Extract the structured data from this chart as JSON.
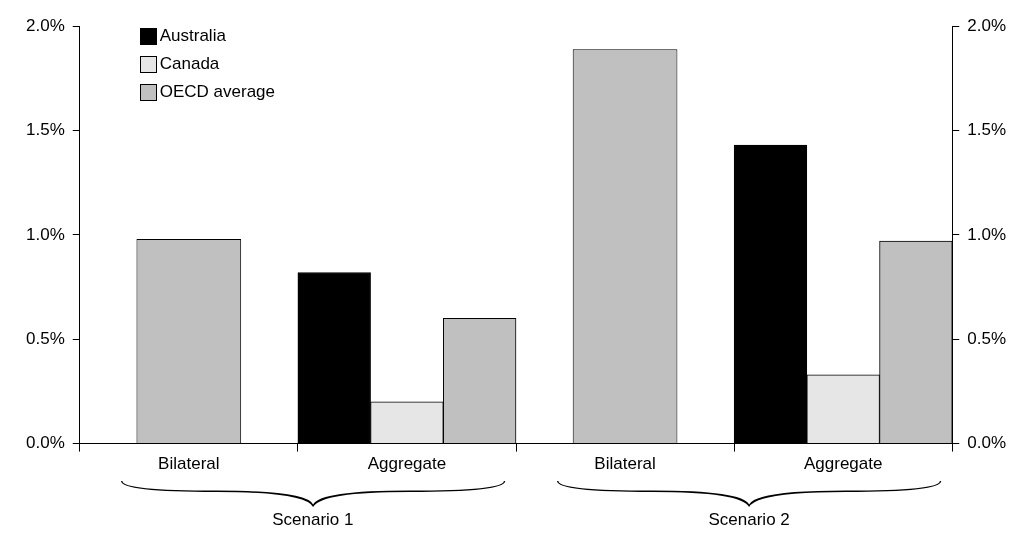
{
  "chart_data": {
    "type": "bar",
    "categories": [
      "Bilateral",
      "Aggregate",
      "Bilateral",
      "Aggregate"
    ],
    "series": [
      {
        "name": "Australia",
        "color": "#000000",
        "values": [
          null,
          0.82,
          null,
          1.43
        ]
      },
      {
        "name": "Canada",
        "color": "#e6e6e6",
        "values": [
          null,
          0.2,
          null,
          0.33
        ]
      },
      {
        "name": "OECD average",
        "color": "#c0c0c0",
        "values": [
          0.98,
          0.6,
          1.89,
          0.97
        ]
      }
    ],
    "ylim": [
      0,
      2
    ],
    "yticks": [
      {
        "value": 0,
        "label": "0.0%"
      },
      {
        "value": 0.5,
        "label": "0.5%"
      },
      {
        "value": 1,
        "label": "1.0%"
      },
      {
        "value": 1.5,
        "label": "1.5%"
      },
      {
        "value": 2,
        "label": "2.0%"
      }
    ],
    "y2lim": [
      0,
      2
    ],
    "y2ticks": [
      {
        "value": 0,
        "label": "0.0%"
      },
      {
        "value": 0.5,
        "label": "0.5%"
      },
      {
        "value": 1,
        "label": "1.0%"
      },
      {
        "value": 1.5,
        "label": "1.5%"
      },
      {
        "value": 2,
        "label": "2.0%"
      }
    ],
    "annotations": [
      "Scenario 1",
      "Scenario 2"
    ],
    "legend": "top left",
    "grid": false
  }
}
